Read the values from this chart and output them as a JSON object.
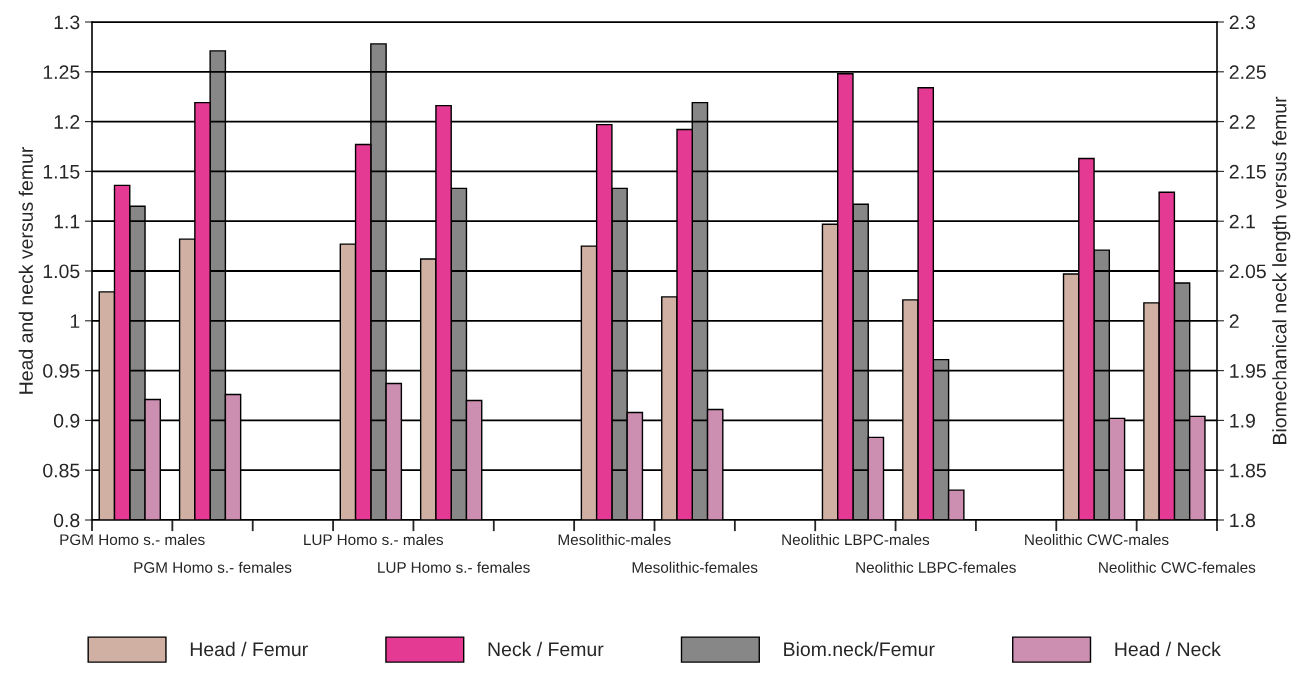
{
  "chart_data": {
    "type": "bar",
    "categories": [
      "PGM Homo s.- males",
      "PGM Homo s.- females",
      null,
      "LUP Homo s.- males",
      "LUP Homo s.- females",
      null,
      "Mesolithic-males",
      "Mesolithic-females",
      null,
      "Neolithic LBPC-males",
      "Neolithic LBPC-females",
      null,
      "Neolithic CWC-males",
      "Neolithic CWC-females"
    ],
    "series": [
      {
        "name": "Head / Femur",
        "color": "#cfb0a3",
        "values": [
          1.029,
          1.082,
          null,
          1.077,
          1.062,
          null,
          1.075,
          1.024,
          null,
          1.097,
          1.021,
          null,
          1.047,
          1.018
        ]
      },
      {
        "name": "Neck / Femur",
        "color": "#e43a94",
        "values": [
          1.136,
          1.219,
          null,
          1.177,
          1.216,
          null,
          1.197,
          1.192,
          null,
          1.248,
          1.234,
          null,
          1.163,
          1.129
        ]
      },
      {
        "name": "Biom.neck/Femur",
        "color": "#878787",
        "axis": "y2",
        "values": [
          2.115,
          2.271,
          null,
          2.278,
          2.133,
          null,
          2.133,
          2.219,
          null,
          2.117,
          1.961,
          null,
          2.071,
          2.038
        ]
      },
      {
        "name": "Head / Neck",
        "color": "#cc8fb1",
        "values": [
          0.921,
          0.926,
          null,
          0.937,
          0.92,
          null,
          0.908,
          0.911,
          null,
          0.883,
          0.83,
          null,
          0.902,
          0.904
        ]
      }
    ],
    "ylabel": "Head and neck versus femur",
    "y2label": "Biomechanical neck length versus femur",
    "ylim": [
      0.8,
      1.3
    ],
    "yticks": [
      0.8,
      0.85,
      0.9,
      0.95,
      1,
      1.05,
      1.1,
      1.15,
      1.2,
      1.25,
      1.3
    ],
    "y2lim": [
      1.8,
      2.3
    ],
    "y2ticks": [
      1.8,
      1.85,
      1.9,
      1.95,
      2,
      2.05,
      2.1,
      2.15,
      2.2,
      2.25,
      2.3
    ],
    "grid": "y",
    "legend": "bottom"
  }
}
